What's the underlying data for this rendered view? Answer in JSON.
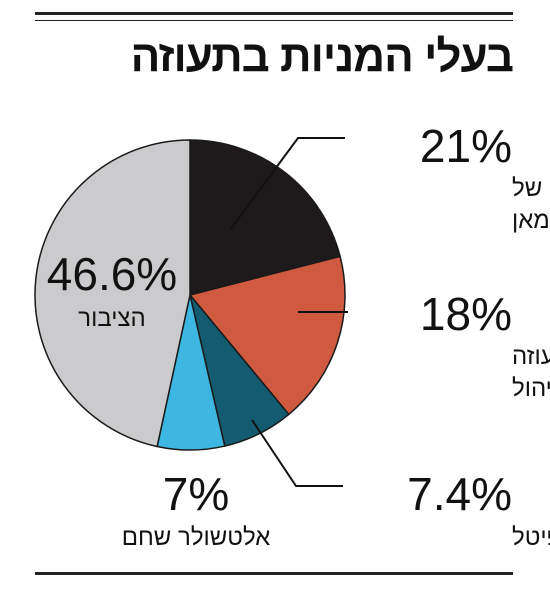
{
  "title": "בעלי המניות בתעוזה",
  "chart_data": {
    "type": "pie",
    "title": "בעלי המניות בתעוזה",
    "slices": [
      {
        "label_lines": [
          "עזבונו של",
          "אלפרד מאן"
        ],
        "value_label": "21%",
        "value": 21,
        "color": "#1e1a1b"
      },
      {
        "label_lines": [
          "תעוזה",
          "אחזקה וניהול"
        ],
        "value_label": "18%",
        "value": 18,
        "color": "#cf5a40"
      },
      {
        "label_lines": [
          "טי ג'יי קפיטל"
        ],
        "value_label": "7.4%",
        "value": 7.4,
        "color": "#135b70"
      },
      {
        "label_lines": [
          "אלטשולר שחם"
        ],
        "value_label": "7%",
        "value": 7,
        "color": "#3db6e1"
      },
      {
        "label_lines": [
          "הציבור"
        ],
        "value_label": "46.6%",
        "value": 46.6,
        "color": "#cbcbcd"
      }
    ]
  }
}
